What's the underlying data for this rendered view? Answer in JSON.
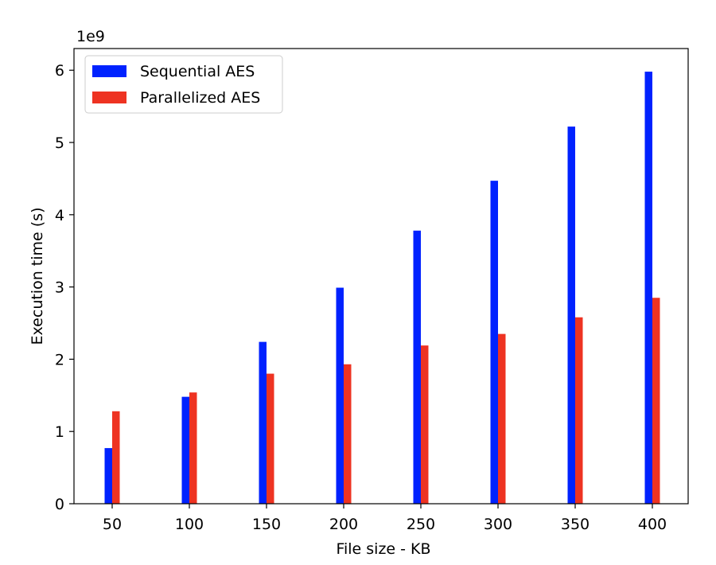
{
  "chart_data": {
    "type": "bar",
    "title": "",
    "xlabel": "File size - KB",
    "ylabel": "Execution time (s)",
    "y_multiplier_label": "1e9",
    "y_multiplier": 1000000000,
    "categories": [
      "50",
      "100",
      "150",
      "200",
      "250",
      "300",
      "350",
      "400"
    ],
    "y_ticks": [
      0,
      1,
      2,
      3,
      4,
      5,
      6
    ],
    "ylim": [
      0,
      6.3
    ],
    "grid": false,
    "legend_position": "top-left",
    "series": [
      {
        "name": "Sequential AES",
        "color": "#0022ff",
        "values": [
          0.77,
          1.48,
          2.24,
          2.99,
          3.78,
          4.47,
          5.22,
          5.98
        ]
      },
      {
        "name": "Parallelized AES",
        "color": "#ee3322",
        "values": [
          1.28,
          1.54,
          1.8,
          1.93,
          2.19,
          2.35,
          2.58,
          2.85
        ]
      }
    ]
  }
}
